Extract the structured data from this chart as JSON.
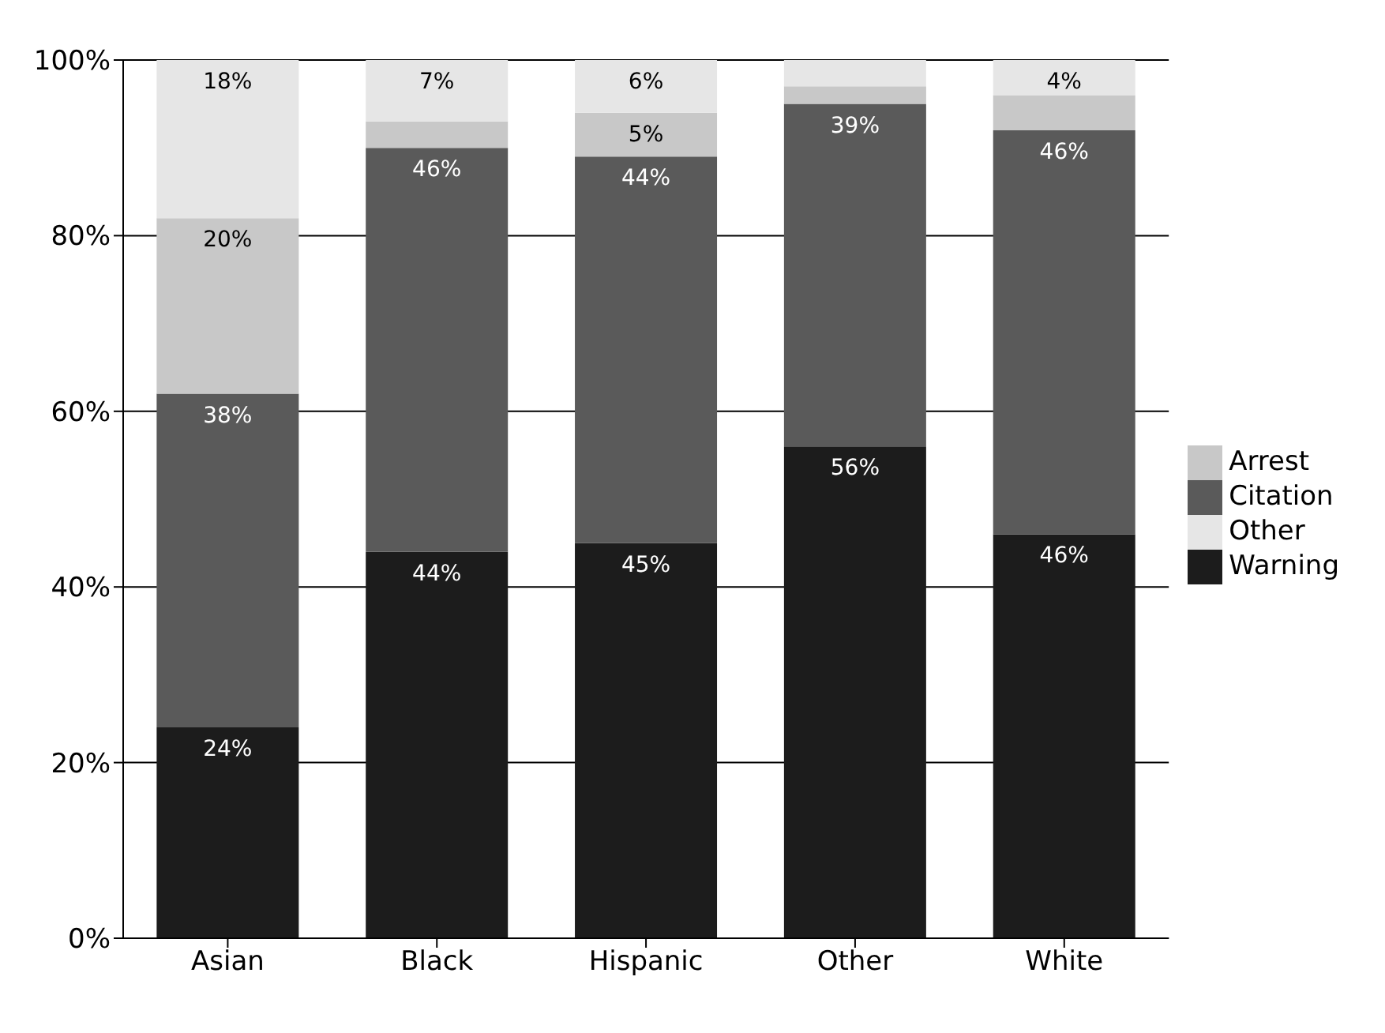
{
  "chart_data": {
    "type": "bar",
    "stacked": true,
    "categories": [
      "Asian",
      "Black",
      "Hispanic",
      "Other",
      "White"
    ],
    "series": [
      {
        "name": "Warning",
        "color": "#1c1c1c",
        "values": [
          24,
          44,
          45,
          56,
          46
        ],
        "value_labels": [
          "24%",
          "44%",
          "45%",
          "56%",
          "46%"
        ]
      },
      {
        "name": "Citation",
        "color": "#5a5a5a",
        "values": [
          38,
          46,
          44,
          39,
          46
        ],
        "value_labels": [
          "38%",
          "46%",
          "44%",
          "39%",
          "46%"
        ]
      },
      {
        "name": "Arrest",
        "color": "#c8c8c8",
        "values": [
          20,
          3,
          5,
          2,
          4
        ],
        "value_labels": [
          "20%",
          null,
          "5%",
          null,
          null
        ]
      },
      {
        "name": "Other",
        "color": "#e6e6e6",
        "values": [
          18,
          7,
          6,
          3,
          4
        ],
        "value_labels": [
          "18%",
          "7%",
          "6%",
          null,
          "4%"
        ]
      }
    ],
    "ylim": [
      0,
      100
    ],
    "yticks": [
      {
        "value": 0,
        "label": "0%"
      },
      {
        "value": 20,
        "label": "20%"
      },
      {
        "value": 40,
        "label": "40%"
      },
      {
        "value": 60,
        "label": "60%"
      },
      {
        "value": 80,
        "label": "80%"
      },
      {
        "value": 100,
        "label": "100%"
      }
    ],
    "grid": "y",
    "legend": "right"
  }
}
